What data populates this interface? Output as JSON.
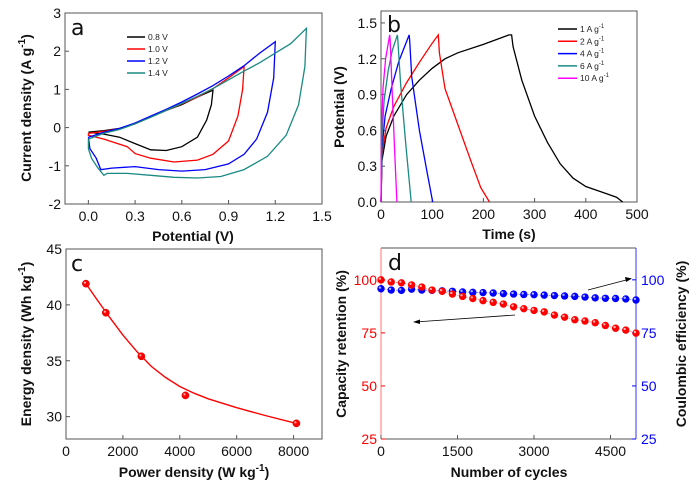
{
  "chart_data": [
    {
      "id": "a",
      "type": "line",
      "panel_label": "a",
      "xlabel": "Potential (V)",
      "ylabel": "Current density (A g^-1)",
      "ylabel_main": "Current density (A g",
      "ylabel_sup": "-1",
      "ylabel_tail": ")",
      "xlim": [
        -0.15,
        1.5
      ],
      "ylim": [
        -2,
        3
      ],
      "xticks": [
        0.0,
        0.3,
        0.6,
        0.9,
        1.2,
        1.5
      ],
      "xtick_labels": [
        "0.0",
        "0.3",
        "0.6",
        "0.9",
        "1.2",
        "1.5"
      ],
      "yticks": [
        -2,
        -1,
        0,
        1,
        2,
        3
      ],
      "ytick_labels": [
        "-2",
        "-1",
        "0",
        "1",
        "2",
        "3"
      ],
      "legend_position": "top-center",
      "series": [
        {
          "name": "0.8 V",
          "color": "#000000",
          "forward": [
            [
              0.0,
              -0.12
            ],
            [
              0.1,
              -0.08
            ],
            [
              0.2,
              -0.02
            ],
            [
              0.3,
              0.1
            ],
            [
              0.4,
              0.28
            ],
            [
              0.5,
              0.45
            ],
            [
              0.6,
              0.6
            ],
            [
              0.7,
              0.8
            ],
            [
              0.8,
              0.98
            ]
          ],
          "reverse": [
            [
              0.8,
              0.98
            ],
            [
              0.79,
              0.6
            ],
            [
              0.76,
              0.2
            ],
            [
              0.7,
              -0.25
            ],
            [
              0.6,
              -0.5
            ],
            [
              0.5,
              -0.6
            ],
            [
              0.4,
              -0.58
            ],
            [
              0.3,
              -0.42
            ],
            [
              0.2,
              -0.25
            ],
            [
              0.1,
              -0.17
            ],
            [
              0.0,
              -0.12
            ]
          ]
        },
        {
          "name": "1.0 V",
          "color": "#ff0000",
          "forward": [
            [
              0.0,
              -0.15
            ],
            [
              0.1,
              -0.1
            ],
            [
              0.2,
              -0.03
            ],
            [
              0.3,
              0.1
            ],
            [
              0.4,
              0.28
            ],
            [
              0.5,
              0.45
            ],
            [
              0.6,
              0.62
            ],
            [
              0.7,
              0.8
            ],
            [
              0.8,
              1.02
            ],
            [
              0.9,
              1.3
            ],
            [
              1.0,
              1.6
            ]
          ],
          "reverse": [
            [
              1.0,
              1.6
            ],
            [
              0.99,
              1.0
            ],
            [
              0.96,
              0.3
            ],
            [
              0.9,
              -0.35
            ],
            [
              0.8,
              -0.7
            ],
            [
              0.7,
              -0.85
            ],
            [
              0.55,
              -0.9
            ],
            [
              0.4,
              -0.8
            ],
            [
              0.3,
              -0.68
            ],
            [
              0.25,
              -0.5
            ],
            [
              0.1,
              -0.3
            ],
            [
              0.0,
              -0.2
            ],
            [
              0.0,
              -0.15
            ]
          ]
        },
        {
          "name": "1.2 V",
          "color": "#0000ff",
          "forward": [
            [
              0.0,
              -0.25
            ],
            [
              0.1,
              -0.12
            ],
            [
              0.2,
              -0.02
            ],
            [
              0.3,
              0.12
            ],
            [
              0.4,
              0.3
            ],
            [
              0.5,
              0.48
            ],
            [
              0.6,
              0.67
            ],
            [
              0.7,
              0.88
            ],
            [
              0.8,
              1.1
            ],
            [
              0.9,
              1.35
            ],
            [
              1.0,
              1.62
            ],
            [
              1.1,
              1.95
            ],
            [
              1.2,
              2.25
            ]
          ],
          "reverse": [
            [
              1.2,
              2.25
            ],
            [
              1.19,
              1.3
            ],
            [
              1.15,
              0.4
            ],
            [
              1.08,
              -0.3
            ],
            [
              1.0,
              -0.7
            ],
            [
              0.9,
              -0.95
            ],
            [
              0.75,
              -1.1
            ],
            [
              0.6,
              -1.14
            ],
            [
              0.45,
              -1.1
            ],
            [
              0.3,
              -1.02
            ],
            [
              0.15,
              -1.06
            ],
            [
              0.08,
              -1.1
            ],
            [
              0.05,
              -0.8
            ],
            [
              0.01,
              -0.55
            ],
            [
              0.0,
              -0.25
            ]
          ]
        },
        {
          "name": "1.4 V",
          "color": "#1a8a82",
          "forward": [
            [
              0.0,
              -0.3
            ],
            [
              0.1,
              -0.15
            ],
            [
              0.2,
              -0.05
            ],
            [
              0.3,
              0.1
            ],
            [
              0.4,
              0.27
            ],
            [
              0.5,
              0.45
            ],
            [
              0.6,
              0.63
            ],
            [
              0.7,
              0.82
            ],
            [
              0.8,
              1.02
            ],
            [
              0.9,
              1.25
            ],
            [
              1.0,
              1.48
            ],
            [
              1.1,
              1.7
            ],
            [
              1.2,
              1.95
            ],
            [
              1.3,
              2.2
            ],
            [
              1.4,
              2.6
            ]
          ],
          "reverse": [
            [
              1.4,
              2.6
            ],
            [
              1.39,
              1.6
            ],
            [
              1.35,
              0.6
            ],
            [
              1.27,
              -0.2
            ],
            [
              1.15,
              -0.75
            ],
            [
              1.0,
              -1.1
            ],
            [
              0.85,
              -1.28
            ],
            [
              0.7,
              -1.32
            ],
            [
              0.55,
              -1.3
            ],
            [
              0.4,
              -1.25
            ],
            [
              0.25,
              -1.2
            ],
            [
              0.12,
              -1.2
            ],
            [
              0.1,
              -1.25
            ],
            [
              0.06,
              -1.05
            ],
            [
              0.02,
              -0.8
            ],
            [
              0.0,
              -0.55
            ],
            [
              0.0,
              -0.3
            ]
          ]
        }
      ]
    },
    {
      "id": "b",
      "type": "line",
      "panel_label": "b",
      "xlabel": "Time (s)",
      "ylabel": "Potential (V)",
      "xlim": [
        0,
        500
      ],
      "ylim": [
        0,
        1.6
      ],
      "xticks": [
        0,
        100,
        200,
        300,
        400,
        500
      ],
      "xtick_labels": [
        "0",
        "100",
        "200",
        "300",
        "400",
        "500"
      ],
      "yticks": [
        0.0,
        0.3,
        0.6,
        0.9,
        1.2,
        1.5
      ],
      "ytick_labels": [
        "0.0",
        "0.3",
        "0.6",
        "0.9",
        "1.2",
        "1.5"
      ],
      "legend_position": "top-right",
      "series": [
        {
          "name": "1 A g^-1",
          "label_main": "1 A g",
          "label_sup": "-1",
          "color": "#000000",
          "points": [
            [
              0,
              0
            ],
            [
              2,
              0.35
            ],
            [
              10,
              0.55
            ],
            [
              25,
              0.72
            ],
            [
              50,
              0.9
            ],
            [
              75,
              1.02
            ],
            [
              100,
              1.12
            ],
            [
              125,
              1.2
            ],
            [
              150,
              1.25
            ],
            [
              200,
              1.32
            ],
            [
              250,
              1.4
            ],
            [
              255,
              1.4
            ],
            [
              258,
              1.3
            ],
            [
              275,
              1.02
            ],
            [
              300,
              0.72
            ],
            [
              325,
              0.5
            ],
            [
              350,
              0.32
            ],
            [
              375,
              0.2
            ],
            [
              400,
              0.13
            ],
            [
              440,
              0.07
            ],
            [
              460,
              0.04
            ],
            [
              472,
              0
            ]
          ]
        },
        {
          "name": "2 A g^-1",
          "label_main": "2 A g",
          "label_sup": "-1",
          "color": "#ff0000",
          "points": [
            [
              0,
              0
            ],
            [
              2,
              0.4
            ],
            [
              10,
              0.62
            ],
            [
              25,
              0.8
            ],
            [
              50,
              1.0
            ],
            [
              75,
              1.17
            ],
            [
              100,
              1.33
            ],
            [
              112,
              1.4
            ],
            [
              114,
              1.25
            ],
            [
              125,
              0.95
            ],
            [
              150,
              0.65
            ],
            [
              175,
              0.35
            ],
            [
              195,
              0.12
            ],
            [
              212,
              0
            ]
          ]
        },
        {
          "name": "4 A g^-1",
          "label_main": "4 A g",
          "label_sup": "-1",
          "color": "#0000ff",
          "points": [
            [
              0,
              0
            ],
            [
              2,
              0.45
            ],
            [
              8,
              0.72
            ],
            [
              20,
              0.95
            ],
            [
              35,
              1.18
            ],
            [
              55,
              1.4
            ],
            [
              56,
              1.35
            ],
            [
              60,
              1.05
            ],
            [
              75,
              0.6
            ],
            [
              90,
              0.25
            ],
            [
              101,
              0
            ]
          ]
        },
        {
          "name": "6 A g^-1",
          "label_main": "6 A g",
          "label_sup": "-1",
          "color": "#1a8a82",
          "points": [
            [
              0,
              0
            ],
            [
              2,
              0.55
            ],
            [
              6,
              0.85
            ],
            [
              14,
              1.1
            ],
            [
              22,
              1.27
            ],
            [
              32,
              1.4
            ],
            [
              33,
              1.35
            ],
            [
              38,
              1.0
            ],
            [
              48,
              0.5
            ],
            [
              59,
              0
            ]
          ]
        },
        {
          "name": "10 A g^-1",
          "label_main": "10 A g",
          "label_sup": "-1",
          "color": "#ff00ff",
          "points": [
            [
              0,
              0
            ],
            [
              1,
              0.6
            ],
            [
              4,
              0.95
            ],
            [
              9,
              1.2
            ],
            [
              17,
              1.4
            ],
            [
              18,
              1.35
            ],
            [
              22,
              0.9
            ],
            [
              27,
              0.4
            ],
            [
              31,
              0
            ]
          ]
        }
      ]
    },
    {
      "id": "c",
      "type": "scatter",
      "panel_label": "c",
      "xlabel": "Power density (W kg^-1)",
      "xlabel_main": "Power density (W kg",
      "xlabel_sup": "-1",
      "xlabel_tail": ")",
      "ylabel": "Energy density (Wh kg^-1)",
      "ylabel_main": "Energy density (Wh kg",
      "ylabel_sup": "-1",
      "ylabel_tail": ")",
      "xlim": [
        0,
        9000
      ],
      "ylim": [
        28,
        45
      ],
      "xticks": [
        0,
        2000,
        4000,
        6000,
        8000
      ],
      "xtick_labels": [
        "0",
        "2000",
        "4000",
        "6000",
        "8000"
      ],
      "yticks": [
        30,
        35,
        40,
        45
      ],
      "ytick_labels": [
        "30",
        "35",
        "40",
        "45"
      ],
      "color": "#ff0000",
      "points": [
        [
          700,
          41.9
        ],
        [
          1400,
          39.3
        ],
        [
          2650,
          35.4
        ],
        [
          4200,
          31.9
        ],
        [
          8100,
          29.4
        ]
      ],
      "fit": [
        [
          700,
          41.9
        ],
        [
          1000,
          40.8
        ],
        [
          1500,
          39.0
        ],
        [
          2000,
          37.3
        ],
        [
          2500,
          35.8
        ],
        [
          3000,
          34.5
        ],
        [
          3500,
          33.5
        ],
        [
          4000,
          32.7
        ],
        [
          4500,
          32.1
        ],
        [
          5000,
          31.6
        ],
        [
          6000,
          30.8
        ],
        [
          7000,
          30.1
        ],
        [
          8100,
          29.4
        ]
      ]
    },
    {
      "id": "d",
      "type": "scatter",
      "panel_label": "d",
      "xlabel": "Number of cycles",
      "ylabel": "Capacity retention (%)",
      "ylabel_right": "Coulombic efficiency (%)",
      "xlim": [
        0,
        5000
      ],
      "ylim": [
        25,
        115
      ],
      "ylim_right": [
        25,
        115
      ],
      "xticks": [
        0,
        1500,
        3000,
        4500
      ],
      "xtick_labels": [
        "0",
        "1500",
        "3000",
        "4500"
      ],
      "yticks": [
        25,
        50,
        75,
        100
      ],
      "ytick_labels": [
        "25",
        "50",
        "75",
        "100"
      ],
      "series": [
        {
          "name": "Capacity retention",
          "axis": "left",
          "color": "#ff0000",
          "x": [
            0,
            200,
            400,
            600,
            800,
            1000,
            1200,
            1400,
            1600,
            1800,
            2000,
            2200,
            2400,
            2600,
            2800,
            3000,
            3200,
            3400,
            3600,
            3800,
            4000,
            4200,
            4400,
            4600,
            4800,
            5000
          ],
          "values": [
            100,
            99,
            98.6,
            97.6,
            96.6,
            95.2,
            94.6,
            93.3,
            92.2,
            91.2,
            90.2,
            89.4,
            88.6,
            87.3,
            86.4,
            85.6,
            84.9,
            83.4,
            82.4,
            81.2,
            80.6,
            79.8,
            78.5,
            77.2,
            76.3,
            74.9
          ]
        },
        {
          "name": "Coulombic efficiency",
          "axis": "right",
          "color": "#0000ff",
          "x": [
            0,
            200,
            400,
            600,
            800,
            1000,
            1200,
            1400,
            1600,
            1800,
            2000,
            2200,
            2400,
            2600,
            2800,
            3000,
            3200,
            3400,
            3600,
            3800,
            4000,
            4200,
            4400,
            4600,
            4800,
            5000
          ],
          "values": [
            95.8,
            95.2,
            95.0,
            95.6,
            95.2,
            95.0,
            94.8,
            94.6,
            94.3,
            94.1,
            94.0,
            93.8,
            93.5,
            93.3,
            93.1,
            93.0,
            92.8,
            92.6,
            92.4,
            92.2,
            91.9,
            91.5,
            91.3,
            91.2,
            91.0,
            90.5
          ]
        }
      ],
      "annotations": [
        "arrow pointing to left axis (capacity retention)",
        "arrow pointing to right axis (coulombic efficiency)"
      ]
    }
  ]
}
